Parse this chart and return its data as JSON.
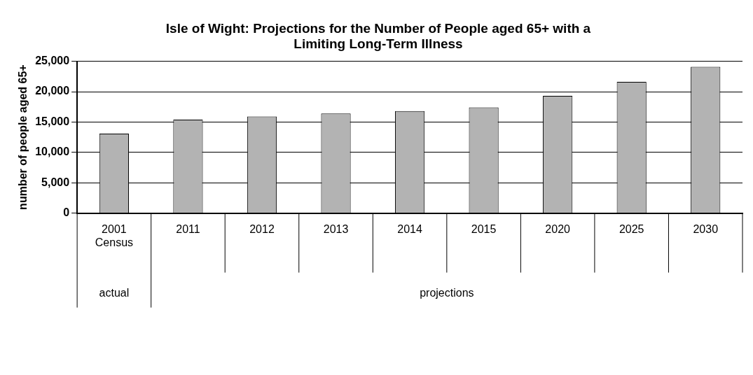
{
  "chart_data": {
    "type": "bar",
    "title": "Isle of Wight: Projections for the Number of People aged 65+ with a Limiting Long-Term Illness",
    "ylabel": "number of people aged 65+",
    "categories": [
      "2001 Census",
      "2011",
      "2012",
      "2013",
      "2014",
      "2015",
      "2020",
      "2025",
      "2030"
    ],
    "values": [
      13100,
      15400,
      15900,
      16400,
      16800,
      17400,
      19300,
      21600,
      24100
    ],
    "color": "#b3b3b3",
    "ylim": [
      0,
      25000
    ],
    "yticks": [
      {
        "value": 0,
        "label": "0"
      },
      {
        "value": 5000,
        "label": "5,000"
      },
      {
        "value": 10000,
        "label": "10,000"
      },
      {
        "value": 15000,
        "label": "15,000"
      },
      {
        "value": 20000,
        "label": "20,000"
      },
      {
        "value": 25000,
        "label": "25,000"
      }
    ],
    "grid": "y",
    "legend": false,
    "annotations": [
      "actual",
      "projections"
    ]
  }
}
